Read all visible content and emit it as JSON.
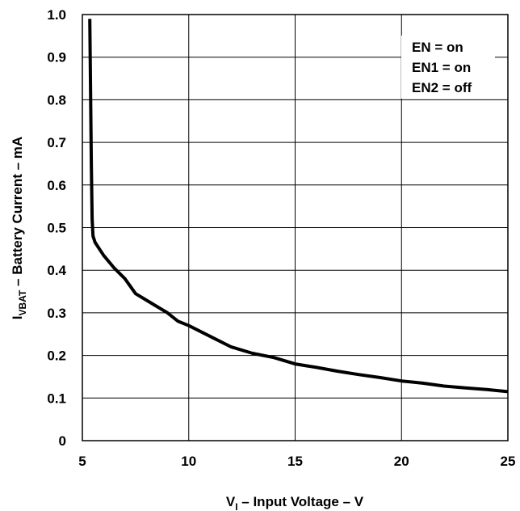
{
  "chart_data": {
    "type": "line",
    "xlabel": {
      "main": "V",
      "sub": "I",
      "rest": " – Input Voltage  –  V"
    },
    "ylabel": {
      "main": "I",
      "sub": "VBAT",
      "rest": " – Battery Current  –  mA"
    },
    "xlim": [
      5,
      25
    ],
    "ylim": [
      0,
      1.0
    ],
    "x_ticks": [
      "5",
      "10",
      "15",
      "20",
      "25"
    ],
    "y_ticks": [
      "0",
      "0.1",
      "0.2",
      "0.3",
      "0.4",
      "0.5",
      "0.6",
      "0.7",
      "0.8",
      "0.9",
      "1.0"
    ],
    "grid": true,
    "legend_position": "top-right",
    "annotations": [
      "EN = on",
      "EN1 = on",
      "EN2 = off"
    ],
    "series": [
      {
        "x": [
          5.35,
          5.38,
          5.42,
          5.46,
          5.5,
          5.6,
          6.0,
          6.5,
          7.0,
          7.5,
          8.0,
          8.5,
          9.0,
          9.5,
          10.0,
          11.0,
          12.0,
          13.0,
          14.0,
          15.0,
          16.0,
          17.0,
          18.0,
          19.0,
          20.0,
          21.0,
          22.0,
          23.0,
          24.0,
          25.0
        ],
        "y": [
          0.99,
          0.85,
          0.65,
          0.52,
          0.48,
          0.465,
          0.435,
          0.405,
          0.38,
          0.345,
          0.33,
          0.315,
          0.3,
          0.28,
          0.27,
          0.245,
          0.22,
          0.205,
          0.195,
          0.18,
          0.172,
          0.163,
          0.155,
          0.148,
          0.14,
          0.135,
          0.128,
          0.124,
          0.12,
          0.115
        ]
      }
    ]
  }
}
